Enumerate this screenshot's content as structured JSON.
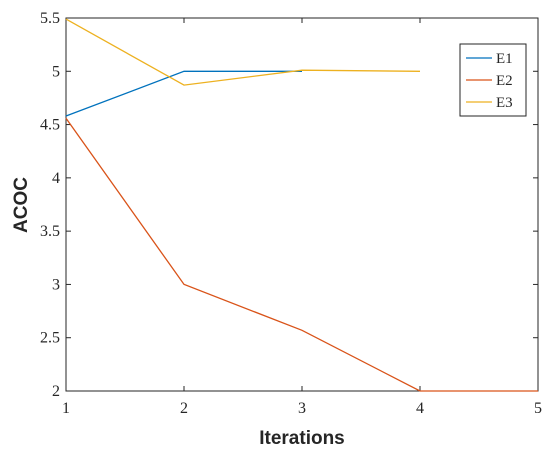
{
  "chart_data": {
    "type": "line",
    "title": "",
    "xlabel": "Iterations",
    "ylabel": "ACOC",
    "xlim": [
      1,
      5
    ],
    "ylim": [
      2,
      5.5
    ],
    "xticks": [
      1,
      2,
      3,
      4,
      5
    ],
    "yticks": [
      2,
      2.5,
      3,
      3.5,
      4,
      4.5,
      5,
      5.5
    ],
    "xtick_labels": [
      "1",
      "2",
      "3",
      "4",
      "5"
    ],
    "ytick_labels": [
      "2",
      "2.5",
      "3",
      "3.5",
      "4",
      "4.5",
      "5",
      "5.5"
    ],
    "grid": false,
    "legend_position": "top-right",
    "series": [
      {
        "name": "E1",
        "color": "#0072BD",
        "x": [
          1,
          2,
          3
        ],
        "y": [
          4.58,
          5.0,
          5.0
        ]
      },
      {
        "name": "E2",
        "color": "#D95319",
        "x": [
          1,
          2,
          3,
          4,
          5
        ],
        "y": [
          4.56,
          3.0,
          2.57,
          2.0,
          2.0
        ]
      },
      {
        "name": "E3",
        "color": "#EDB120",
        "x": [
          1,
          2,
          3,
          4
        ],
        "y": [
          5.49,
          4.87,
          5.01,
          5.0
        ]
      }
    ]
  }
}
